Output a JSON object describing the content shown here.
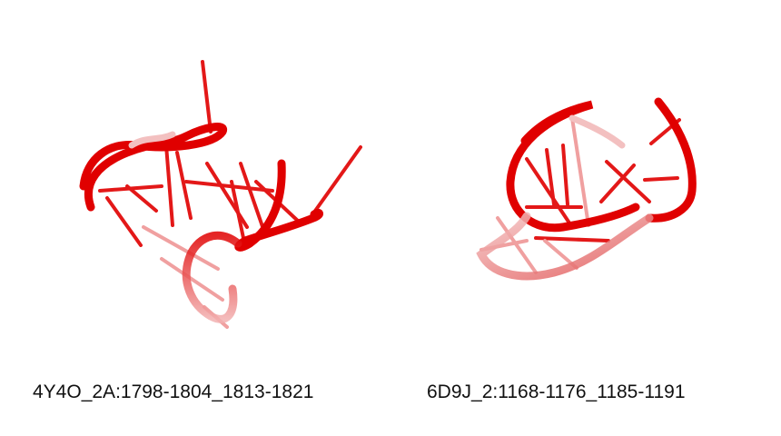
{
  "panels": [
    {
      "caption": "4Y4O_2A:1798-1804_1813-1821"
    },
    {
      "caption": "6D9J_2:1168-1176_1185-1191"
    }
  ],
  "colors": {
    "strand": "#e00000",
    "strand_faded": "#f0a0a0",
    "background": "#ffffff",
    "text": "#111111"
  }
}
